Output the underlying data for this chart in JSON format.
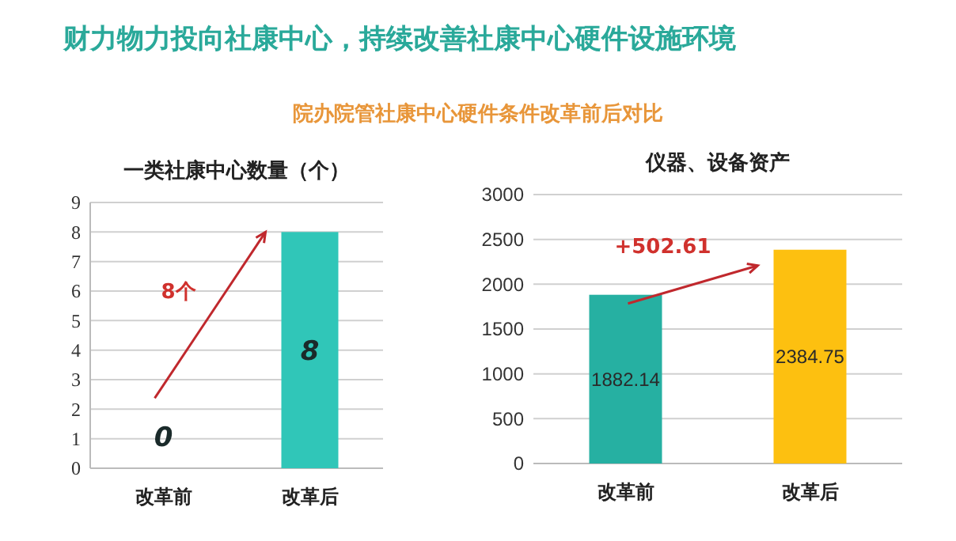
{
  "chart_data": [
    {
      "type": "bar",
      "title": "一类社康中心数量（个）",
      "categories": [
        "改革前",
        "改革后"
      ],
      "values": [
        0,
        8
      ],
      "color": "#30c6b8",
      "ylim": [
        0,
        9
      ],
      "yticks": [
        0,
        1,
        2,
        3,
        4,
        5,
        6,
        7,
        8,
        9
      ],
      "grid": "y",
      "data_labels": true,
      "annotations": [
        "财力物力投向社康中心，持续改善社康中心硬件设施环境",
        "院办院管社康中心硬件条件改革前后对比",
        "8个"
      ]
    },
    {
      "type": "bar",
      "title": "仪器、设备资产",
      "categories": [
        "改革前",
        "改革后"
      ],
      "values": [
        1882.14,
        2384.75
      ],
      "colors": [
        "#26b0a2",
        "#fdc010"
      ],
      "ylim": [
        0,
        3000
      ],
      "yticks": [
        0,
        500,
        1000,
        1500,
        2000,
        2500,
        3000
      ],
      "grid": "y",
      "data_labels": true,
      "annotations": [
        "+502.61"
      ]
    }
  ]
}
